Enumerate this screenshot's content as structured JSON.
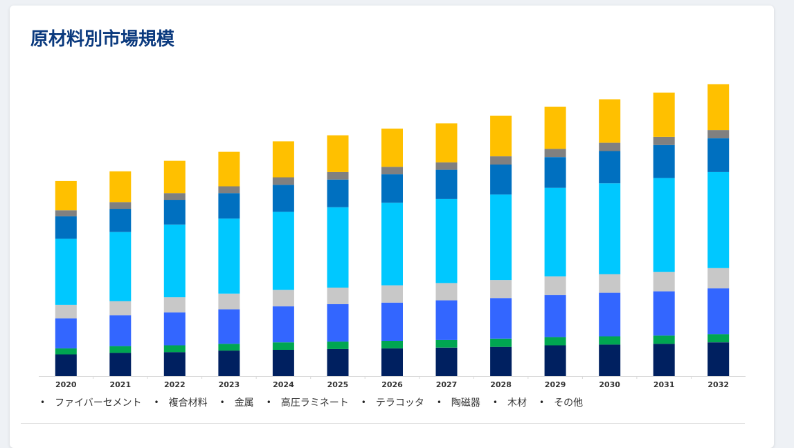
{
  "page": {
    "title": "原材料別市場規模"
  },
  "chart_data": {
    "type": "bar",
    "stacked": true,
    "categories": [
      "2020",
      "2021",
      "2022",
      "2023",
      "2024",
      "2025",
      "2026",
      "2027",
      "2028",
      "2029",
      "2030",
      "2031",
      "2032"
    ],
    "series": [
      {
        "name": "その他",
        "color": "#002060",
        "values": [
          29,
          31,
          32,
          34,
          35,
          36,
          37,
          38,
          39,
          41,
          42,
          43,
          45
        ]
      },
      {
        "name": "木材",
        "color": "#00a651",
        "values": [
          8,
          9,
          9,
          9,
          10,
          10,
          10,
          10,
          11,
          11,
          11,
          11,
          11
        ]
      },
      {
        "name": "陶磁器",
        "color": "#3366ff",
        "values": [
          40,
          41,
          44,
          46,
          48,
          50,
          51,
          53,
          54,
          56,
          58,
          59,
          61
        ]
      },
      {
        "name": "テラコッタ",
        "color": "#c8c8c8",
        "values": [
          18,
          19,
          20,
          21,
          22,
          22,
          23,
          23,
          24,
          25,
          25,
          26,
          27
        ]
      },
      {
        "name": "高圧ラミネート",
        "color": "#00c8ff",
        "values": [
          88,
          92,
          97,
          100,
          104,
          107,
          110,
          112,
          114,
          118,
          121,
          125,
          128
        ]
      },
      {
        "name": "金属",
        "color": "#0070c0",
        "values": [
          30,
          31,
          33,
          34,
          36,
          37,
          38,
          39,
          40,
          41,
          43,
          44,
          45
        ]
      },
      {
        "name": "複合材料",
        "color": "#808080",
        "values": [
          8,
          9,
          9,
          9,
          10,
          10,
          10,
          10,
          11,
          11,
          11,
          11,
          11
        ]
      },
      {
        "name": "ファイバーセメント",
        "color": "#ffc000",
        "values": [
          39,
          41,
          43,
          46,
          48,
          49,
          51,
          52,
          54,
          56,
          58,
          59,
          61
        ]
      }
    ],
    "legend": [
      "ファイバーセメント",
      "複合材料",
      "金属",
      "高圧ラミネート",
      "テラコッタ",
      "陶磁器",
      "木材",
      "その他"
    ],
    "legend_position": "bottom",
    "grid": false,
    "ylim": [
      0,
      400
    ],
    "xlabel": "",
    "ylabel": ""
  }
}
